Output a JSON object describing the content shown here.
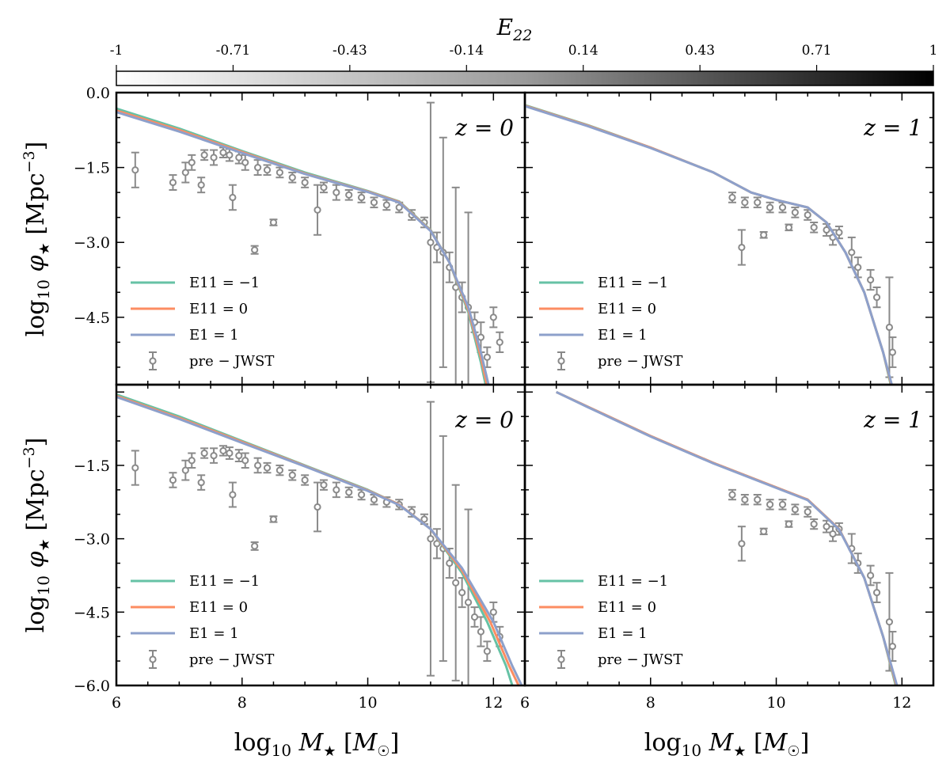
{
  "chart_data": {
    "type": "line",
    "colorbar": {
      "label": "E22",
      "ticks": [
        "-1",
        "-0.71",
        "-0.43",
        "-0.14",
        "0.14",
        "0.43",
        "0.71",
        "1"
      ],
      "colormap": "greys"
    },
    "xlabel": "log10 M★ [M☉]",
    "ylabel": "log10 φ★ [Mpc−3]",
    "xlim": [
      6,
      12.5
    ],
    "ylim": [
      -6.0,
      0.0
    ],
    "xticks": [
      "6",
      "8",
      "10",
      "12"
    ],
    "yticks_top": [
      "0.0",
      "−1.5",
      "−3.0",
      "−4.5"
    ],
    "yticks_bottom": [
      "−1.5",
      "−3.0",
      "−4.5",
      "−6.0"
    ],
    "legend": [
      {
        "label": "E11 = −1",
        "color": "#66c2a5"
      },
      {
        "label": "E11 = 0",
        "color": "#fc8d62"
      },
      {
        "label": "E1 = 1",
        "color": "#8da0cb"
      },
      {
        "label": "pre − JWST",
        "color": "#888888"
      }
    ],
    "panels": [
      {
        "id": "top-left",
        "z_label": "z = 0",
        "series": [
          {
            "name": "E11 = −1",
            "x": [
              6,
              7,
              8,
              9,
              10,
              10.5,
              11,
              11.3,
              11.6,
              11.8,
              11.9
            ],
            "y": [
              -0.32,
              -0.72,
              -1.17,
              -1.6,
              -1.97,
              -2.18,
              -2.75,
              -3.4,
              -4.4,
              -5.4,
              -6.0
            ]
          },
          {
            "name": "E11 = 0",
            "x": [
              6,
              7,
              8,
              9,
              10,
              10.5,
              11,
              11.3,
              11.6,
              11.8,
              11.92
            ],
            "y": [
              -0.36,
              -0.75,
              -1.19,
              -1.62,
              -1.98,
              -2.19,
              -2.76,
              -3.4,
              -4.35,
              -5.3,
              -6.0
            ]
          },
          {
            "name": "E1 = 1",
            "x": [
              6,
              7,
              8,
              9,
              10,
              10.5,
              11,
              11.3,
              11.6,
              11.8,
              11.95
            ],
            "y": [
              -0.39,
              -0.78,
              -1.21,
              -1.63,
              -1.99,
              -2.2,
              -2.77,
              -3.4,
              -4.3,
              -5.2,
              -6.0
            ]
          }
        ],
        "data": [
          {
            "x": 6.3,
            "y": -1.55,
            "err": 0.35
          },
          {
            "x": 6.9,
            "y": -1.8,
            "err": 0.15
          },
          {
            "x": 7.1,
            "y": -1.6,
            "err": 0.2
          },
          {
            "x": 7.2,
            "y": -1.4,
            "err": 0.15
          },
          {
            "x": 7.35,
            "y": -1.85,
            "err": 0.15
          },
          {
            "x": 7.4,
            "y": -1.25,
            "err": 0.1
          },
          {
            "x": 7.55,
            "y": -1.3,
            "err": 0.15
          },
          {
            "x": 7.7,
            "y": -1.2,
            "err": 0.1
          },
          {
            "x": 7.8,
            "y": -1.25,
            "err": 0.12
          },
          {
            "x": 7.85,
            "y": -2.1,
            "err": 0.25
          },
          {
            "x": 7.95,
            "y": -1.3,
            "err": 0.12
          },
          {
            "x": 8.05,
            "y": -1.4,
            "err": 0.15
          },
          {
            "x": 8.2,
            "y": -3.15,
            "err": 0.08
          },
          {
            "x": 8.25,
            "y": -1.5,
            "err": 0.15
          },
          {
            "x": 8.4,
            "y": -1.55,
            "err": 0.1
          },
          {
            "x": 8.5,
            "y": -2.6,
            "err": 0.06
          },
          {
            "x": 8.6,
            "y": -1.6,
            "err": 0.1
          },
          {
            "x": 8.8,
            "y": -1.7,
            "err": 0.1
          },
          {
            "x": 9.0,
            "y": -1.8,
            "err": 0.1
          },
          {
            "x": 9.2,
            "y": -2.35,
            "err": 0.5
          },
          {
            "x": 9.3,
            "y": -1.9,
            "err": 0.1
          },
          {
            "x": 9.5,
            "y": -2.0,
            "err": 0.15
          },
          {
            "x": 9.7,
            "y": -2.05,
            "err": 0.1
          },
          {
            "x": 9.9,
            "y": -2.1,
            "err": 0.1
          },
          {
            "x": 10.1,
            "y": -2.2,
            "err": 0.1
          },
          {
            "x": 10.3,
            "y": -2.25,
            "err": 0.1
          },
          {
            "x": 10.5,
            "y": -2.3,
            "err": 0.1
          },
          {
            "x": 10.7,
            "y": -2.45,
            "err": 0.1
          },
          {
            "x": 10.9,
            "y": -2.6,
            "err": 0.1
          },
          {
            "x": 11.0,
            "y": -3.0,
            "err": 2.8
          },
          {
            "x": 11.1,
            "y": -3.1,
            "err": 0.3
          },
          {
            "x": 11.2,
            "y": -3.2,
            "err": 2.3
          },
          {
            "x": 11.3,
            "y": -3.5,
            "err": 0.3
          },
          {
            "x": 11.4,
            "y": -3.9,
            "err": 2.0
          },
          {
            "x": 11.5,
            "y": -4.1,
            "err": 0.3
          },
          {
            "x": 11.6,
            "y": -4.3,
            "err": 1.9
          },
          {
            "x": 11.7,
            "y": -4.6,
            "err": 0.2
          },
          {
            "x": 11.8,
            "y": -4.9,
            "err": 0.3
          },
          {
            "x": 11.9,
            "y": -5.3,
            "err": 0.2
          },
          {
            "x": 12.0,
            "y": -4.5,
            "err": 0.2
          },
          {
            "x": 12.1,
            "y": -5.0,
            "err": 0.2
          }
        ]
      },
      {
        "id": "top-right",
        "z_label": "z = 1",
        "series": [
          {
            "name": "E11 = −1",
            "x": [
              6,
              7,
              8,
              9,
              9.6,
              10,
              10.5,
              10.8,
              11.1,
              11.4,
              11.7,
              11.85
            ],
            "y": [
              -0.25,
              -0.65,
              -1.1,
              -1.6,
              -2.0,
              -2.15,
              -2.3,
              -2.6,
              -3.2,
              -4.0,
              -5.2,
              -6.0
            ]
          },
          {
            "name": "E11 = 0",
            "x": [
              6,
              7,
              8,
              9,
              9.6,
              10,
              10.5,
              10.8,
              11.1,
              11.4,
              11.7,
              11.86
            ],
            "y": [
              -0.26,
              -0.66,
              -1.1,
              -1.6,
              -2.0,
              -2.15,
              -2.3,
              -2.6,
              -3.2,
              -4.0,
              -5.2,
              -6.0
            ]
          },
          {
            "name": "E1 = 1",
            "x": [
              6,
              7,
              8,
              9,
              9.6,
              10,
              10.5,
              10.8,
              11.1,
              11.4,
              11.7,
              11.87
            ],
            "y": [
              -0.27,
              -0.67,
              -1.11,
              -1.6,
              -2.0,
              -2.15,
              -2.3,
              -2.6,
              -3.2,
              -4.0,
              -5.2,
              -6.0
            ]
          }
        ],
        "data": [
          {
            "x": 9.3,
            "y": -2.1,
            "err": 0.1
          },
          {
            "x": 9.45,
            "y": -3.1,
            "err": 0.35
          },
          {
            "x": 9.5,
            "y": -2.2,
            "err": 0.1
          },
          {
            "x": 9.7,
            "y": -2.2,
            "err": 0.1
          },
          {
            "x": 9.8,
            "y": -2.85,
            "err": 0.06
          },
          {
            "x": 9.9,
            "y": -2.3,
            "err": 0.1
          },
          {
            "x": 10.1,
            "y": -2.3,
            "err": 0.1
          },
          {
            "x": 10.2,
            "y": -2.7,
            "err": 0.06
          },
          {
            "x": 10.3,
            "y": -2.4,
            "err": 0.1
          },
          {
            "x": 10.5,
            "y": -2.45,
            "err": 0.1
          },
          {
            "x": 10.6,
            "y": -2.7,
            "err": 0.1
          },
          {
            "x": 10.8,
            "y": -2.75,
            "err": 0.12
          },
          {
            "x": 10.9,
            "y": -2.9,
            "err": 0.15
          },
          {
            "x": 11.0,
            "y": -2.8,
            "err": 0.12
          },
          {
            "x": 11.2,
            "y": -3.2,
            "err": 0.3
          },
          {
            "x": 11.3,
            "y": -3.5,
            "err": 0.2
          },
          {
            "x": 11.5,
            "y": -3.75,
            "err": 0.2
          },
          {
            "x": 11.6,
            "y": -4.1,
            "err": 0.2
          },
          {
            "x": 11.8,
            "y": -4.7,
            "err": 1.0
          },
          {
            "x": 11.85,
            "y": -5.2,
            "err": 0.3
          }
        ]
      },
      {
        "id": "bottom-left",
        "z_label": "z = 0",
        "series": [
          {
            "name": "E11 = −1",
            "x": [
              6,
              7,
              8,
              9,
              10,
              10.5,
              11,
              11.5,
              11.9,
              12.2,
              12.3
            ],
            "y": [
              -0.05,
              -0.5,
              -1.0,
              -1.5,
              -2.0,
              -2.3,
              -2.8,
              -3.7,
              -4.7,
              -5.6,
              -6.0
            ]
          },
          {
            "name": "E11 = 0",
            "x": [
              6,
              7,
              8,
              9,
              10,
              10.5,
              11,
              11.5,
              11.95,
              12.25,
              12.4
            ],
            "y": [
              -0.08,
              -0.53,
              -1.02,
              -1.51,
              -2.01,
              -2.3,
              -2.8,
              -3.65,
              -4.7,
              -5.6,
              -6.0
            ]
          },
          {
            "name": "E1 = 1",
            "x": [
              6,
              7,
              8,
              9,
              10,
              10.5,
              11,
              11.5,
              12.0,
              12.3,
              12.45
            ],
            "y": [
              -0.1,
              -0.55,
              -1.04,
              -1.52,
              -2.02,
              -2.31,
              -2.8,
              -3.6,
              -4.7,
              -5.6,
              -6.0
            ]
          }
        ],
        "data": [
          {
            "x": 6.3,
            "y": -1.55,
            "err": 0.35
          },
          {
            "x": 6.9,
            "y": -1.8,
            "err": 0.15
          },
          {
            "x": 7.1,
            "y": -1.6,
            "err": 0.2
          },
          {
            "x": 7.2,
            "y": -1.4,
            "err": 0.15
          },
          {
            "x": 7.35,
            "y": -1.85,
            "err": 0.15
          },
          {
            "x": 7.4,
            "y": -1.25,
            "err": 0.1
          },
          {
            "x": 7.55,
            "y": -1.3,
            "err": 0.15
          },
          {
            "x": 7.7,
            "y": -1.2,
            "err": 0.1
          },
          {
            "x": 7.8,
            "y": -1.25,
            "err": 0.12
          },
          {
            "x": 7.85,
            "y": -2.1,
            "err": 0.25
          },
          {
            "x": 7.95,
            "y": -1.3,
            "err": 0.12
          },
          {
            "x": 8.05,
            "y": -1.4,
            "err": 0.15
          },
          {
            "x": 8.2,
            "y": -3.15,
            "err": 0.08
          },
          {
            "x": 8.25,
            "y": -1.5,
            "err": 0.15
          },
          {
            "x": 8.4,
            "y": -1.55,
            "err": 0.1
          },
          {
            "x": 8.5,
            "y": -2.6,
            "err": 0.06
          },
          {
            "x": 8.6,
            "y": -1.6,
            "err": 0.1
          },
          {
            "x": 8.8,
            "y": -1.7,
            "err": 0.1
          },
          {
            "x": 9.0,
            "y": -1.8,
            "err": 0.1
          },
          {
            "x": 9.2,
            "y": -2.35,
            "err": 0.5
          },
          {
            "x": 9.3,
            "y": -1.9,
            "err": 0.1
          },
          {
            "x": 9.5,
            "y": -2.0,
            "err": 0.15
          },
          {
            "x": 9.7,
            "y": -2.05,
            "err": 0.1
          },
          {
            "x": 9.9,
            "y": -2.1,
            "err": 0.1
          },
          {
            "x": 10.1,
            "y": -2.2,
            "err": 0.1
          },
          {
            "x": 10.3,
            "y": -2.25,
            "err": 0.1
          },
          {
            "x": 10.5,
            "y": -2.3,
            "err": 0.1
          },
          {
            "x": 10.7,
            "y": -2.45,
            "err": 0.1
          },
          {
            "x": 10.9,
            "y": -2.6,
            "err": 0.1
          },
          {
            "x": 11.0,
            "y": -3.0,
            "err": 2.8
          },
          {
            "x": 11.1,
            "y": -3.1,
            "err": 0.3
          },
          {
            "x": 11.2,
            "y": -3.2,
            "err": 2.3
          },
          {
            "x": 11.3,
            "y": -3.5,
            "err": 0.3
          },
          {
            "x": 11.4,
            "y": -3.9,
            "err": 2.0
          },
          {
            "x": 11.5,
            "y": -4.1,
            "err": 0.3
          },
          {
            "x": 11.6,
            "y": -4.3,
            "err": 1.9
          },
          {
            "x": 11.7,
            "y": -4.6,
            "err": 0.2
          },
          {
            "x": 11.8,
            "y": -4.9,
            "err": 0.3
          },
          {
            "x": 11.9,
            "y": -5.3,
            "err": 0.2
          },
          {
            "x": 12.0,
            "y": -4.5,
            "err": 0.2
          },
          {
            "x": 12.1,
            "y": -5.0,
            "err": 0.2
          }
        ]
      },
      {
        "id": "bottom-right",
        "z_label": "z = 1",
        "series": [
          {
            "name": "E11 = −1",
            "x": [
              6.5,
              7,
              8,
              9,
              10,
              10.5,
              11,
              11.4,
              11.7,
              11.9
            ],
            "y": [
              0.0,
              -0.3,
              -0.9,
              -1.45,
              -1.95,
              -2.2,
              -2.8,
              -3.8,
              -5.0,
              -6.0
            ]
          },
          {
            "name": "E11 = 0",
            "x": [
              6.5,
              7,
              8,
              9,
              10,
              10.5,
              11,
              11.4,
              11.7,
              11.91
            ],
            "y": [
              0.0,
              -0.3,
              -0.9,
              -1.45,
              -1.95,
              -2.2,
              -2.8,
              -3.8,
              -5.0,
              -6.0
            ]
          },
          {
            "name": "E1 = 1",
            "x": [
              6.5,
              7,
              8,
              9,
              10,
              10.5,
              11,
              11.4,
              11.7,
              11.92
            ],
            "y": [
              0.0,
              -0.31,
              -0.91,
              -1.46,
              -1.96,
              -2.21,
              -2.81,
              -3.8,
              -5.0,
              -6.0
            ]
          }
        ],
        "data": [
          {
            "x": 9.3,
            "y": -2.1,
            "err": 0.1
          },
          {
            "x": 9.45,
            "y": -3.1,
            "err": 0.35
          },
          {
            "x": 9.5,
            "y": -2.2,
            "err": 0.1
          },
          {
            "x": 9.7,
            "y": -2.2,
            "err": 0.1
          },
          {
            "x": 9.8,
            "y": -2.85,
            "err": 0.06
          },
          {
            "x": 9.9,
            "y": -2.3,
            "err": 0.1
          },
          {
            "x": 10.1,
            "y": -2.3,
            "err": 0.1
          },
          {
            "x": 10.2,
            "y": -2.7,
            "err": 0.06
          },
          {
            "x": 10.3,
            "y": -2.4,
            "err": 0.1
          },
          {
            "x": 10.5,
            "y": -2.45,
            "err": 0.1
          },
          {
            "x": 10.6,
            "y": -2.7,
            "err": 0.1
          },
          {
            "x": 10.8,
            "y": -2.75,
            "err": 0.12
          },
          {
            "x": 10.9,
            "y": -2.9,
            "err": 0.15
          },
          {
            "x": 11.0,
            "y": -2.8,
            "err": 0.12
          },
          {
            "x": 11.2,
            "y": -3.2,
            "err": 0.3
          },
          {
            "x": 11.3,
            "y": -3.5,
            "err": 0.2
          },
          {
            "x": 11.5,
            "y": -3.75,
            "err": 0.2
          },
          {
            "x": 11.6,
            "y": -4.1,
            "err": 0.2
          },
          {
            "x": 11.8,
            "y": -4.7,
            "err": 1.0
          },
          {
            "x": 11.85,
            "y": -5.2,
            "err": 0.3
          }
        ]
      }
    ]
  }
}
